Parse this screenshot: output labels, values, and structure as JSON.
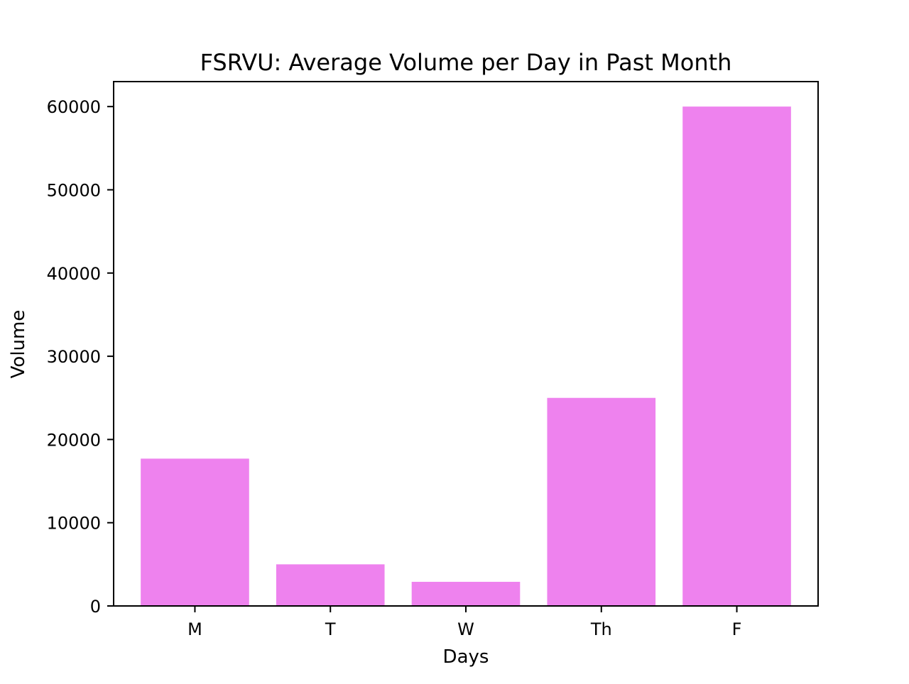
{
  "chart_data": {
    "type": "bar",
    "title": "FSRVU: Average Volume per Day in Past Month",
    "xlabel": "Days",
    "ylabel": "Volume",
    "categories": [
      "M",
      "T",
      "W",
      "Th",
      "F"
    ],
    "values": [
      17700,
      5000,
      2900,
      25000,
      60000
    ],
    "ylim": [
      0,
      63000
    ],
    "yticks": [
      0,
      10000,
      20000,
      30000,
      40000,
      50000,
      60000
    ],
    "bar_color": "#ee82ee",
    "grid": false,
    "legend": "none"
  }
}
